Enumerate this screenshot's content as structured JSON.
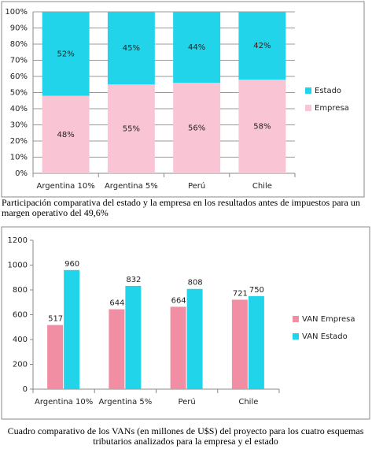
{
  "chart_data": [
    {
      "type": "stacked_bar",
      "categories": [
        "Argentina 10%",
        "Argentina 5%",
        "Perú",
        "Chile"
      ],
      "series": [
        {
          "name": "Empresa",
          "color": "#f9c5d4",
          "values": [
            48,
            55,
            56,
            58
          ],
          "value_labels": [
            "48%",
            "55%",
            "56%",
            "58%"
          ]
        },
        {
          "name": "Estado",
          "color": "#22d4ea",
          "values": [
            52,
            45,
            44,
            42
          ],
          "value_labels": [
            "52%",
            "45%",
            "44%",
            "42%"
          ]
        }
      ],
      "ylim": [
        0,
        100
      ],
      "yticks": [
        {
          "value": 0,
          "label": "0%"
        },
        {
          "value": 10,
          "label": "10%"
        },
        {
          "value": 20,
          "label": "20%"
        },
        {
          "value": 30,
          "label": "30%"
        },
        {
          "value": 40,
          "label": "40%"
        },
        {
          "value": 50,
          "label": "50%"
        },
        {
          "value": 60,
          "label": "60%"
        },
        {
          "value": 70,
          "label": "70%"
        },
        {
          "value": 80,
          "label": "80%"
        },
        {
          "value": 90,
          "label": "90%"
        },
        {
          "value": 100,
          "label": "100%"
        }
      ],
      "grid": true,
      "legend": "right"
    },
    {
      "type": "bar",
      "categories": [
        "Argentina 10%",
        "Argentina 5%",
        "Perú",
        "Chile"
      ],
      "series": [
        {
          "name": "VAN Empresa",
          "color": "#f28ea3",
          "values": [
            517,
            644,
            664,
            721
          ]
        },
        {
          "name": "VAN Estado",
          "color": "#22d4ea",
          "values": [
            960,
            832,
            808,
            750
          ]
        }
      ],
      "ylim": [
        0,
        1200
      ],
      "yticks": [
        0,
        200,
        400,
        600,
        800,
        1000,
        1200
      ],
      "grid": false,
      "legend": "right"
    }
  ],
  "captions": [
    "Participación comparativa del estado y la empresa en los resultados antes de impuestos para un margen operativo del 49,6%",
    "Cuadro comparativo de los VANs  (en millones de U$S) del proyecto para los cuatro esquemas tributarios analizados para la empresa y el estado"
  ]
}
